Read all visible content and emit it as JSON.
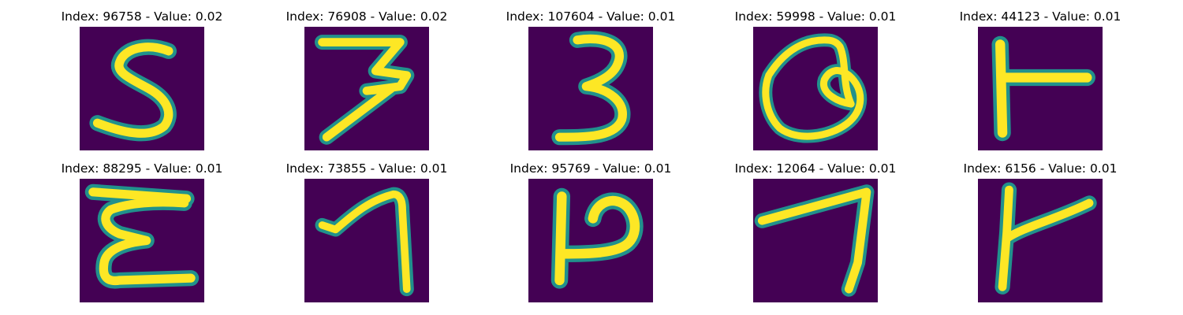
{
  "panels": [
    {
      "index": "Index: 96758 - Value: 0.02",
      "glyph": "S-shaped handwritten stroke"
    },
    {
      "index": "Index: 76908 - Value: 0.02",
      "glyph": "3-shaped handwritten stroke"
    },
    {
      "index": "Index: 107604 - Value: 0.01",
      "glyph": "3-shaped handwritten stroke"
    },
    {
      "index": "Index: 59998 - Value: 0.01",
      "glyph": "Q-shaped handwritten stroke"
    },
    {
      "index": "Index: 44123 - Value: 0.01",
      "glyph": "T-shaped handwritten stroke"
    },
    {
      "index": "Index: 88295 - Value: 0.01",
      "glyph": "E-shaped handwritten stroke"
    },
    {
      "index": "Index: 73855 - Value: 0.01",
      "glyph": "7-shaped handwritten stroke"
    },
    {
      "index": "Index: 95769 - Value: 0.01",
      "glyph": "P-shaped handwritten stroke"
    },
    {
      "index": "Index: 12064 - Value: 0.01",
      "glyph": "7-shaped handwritten stroke"
    },
    {
      "index": "Index: 6156 - Value: 0.01",
      "glyph": "K-shaped handwritten stroke"
    }
  ],
  "colors": {
    "background": "#440154",
    "stroke_core": "#fde725",
    "stroke_edge": "#21918c",
    "stroke_mid": "#5ec962"
  }
}
